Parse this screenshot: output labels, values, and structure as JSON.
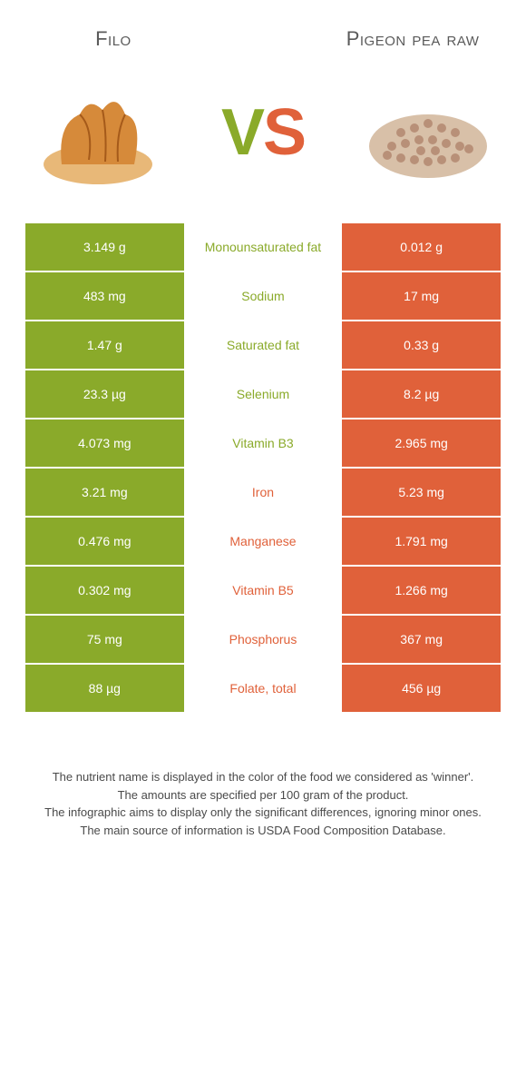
{
  "header": {
    "food_a": "Filo",
    "food_b": "Pigeon pea raw",
    "vs_v": "V",
    "vs_s": "S"
  },
  "colors": {
    "food_a": "#8aaa2a",
    "food_b": "#e0613a",
    "text": "#4a4a4a",
    "row_text": "#ffffff"
  },
  "rows": [
    {
      "left": "3.149 g",
      "label": "Monounsaturated fat",
      "right": "0.012 g",
      "winner": "a"
    },
    {
      "left": "483 mg",
      "label": "Sodium",
      "right": "17 mg",
      "winner": "a"
    },
    {
      "left": "1.47 g",
      "label": "Saturated fat",
      "right": "0.33 g",
      "winner": "a"
    },
    {
      "left": "23.3 µg",
      "label": "Selenium",
      "right": "8.2 µg",
      "winner": "a"
    },
    {
      "left": "4.073 mg",
      "label": "Vitamin B3",
      "right": "2.965 mg",
      "winner": "a"
    },
    {
      "left": "3.21 mg",
      "label": "Iron",
      "right": "5.23 mg",
      "winner": "b"
    },
    {
      "left": "0.476 mg",
      "label": "Manganese",
      "right": "1.791 mg",
      "winner": "b"
    },
    {
      "left": "0.302 mg",
      "label": "Vitamin B5",
      "right": "1.266 mg",
      "winner": "b"
    },
    {
      "left": "75 mg",
      "label": "Phosphorus",
      "right": "367 mg",
      "winner": "b"
    },
    {
      "left": "88 µg",
      "label": "Folate, total",
      "right": "456 µg",
      "winner": "b"
    }
  ],
  "notes": [
    "The nutrient name is displayed in the color of the food we considered as 'winner'.",
    "The amounts are specified per 100 gram of the product.",
    "The infographic aims to display only the significant differences, ignoring minor ones.",
    "The main source of information is USDA Food Composition Database."
  ]
}
